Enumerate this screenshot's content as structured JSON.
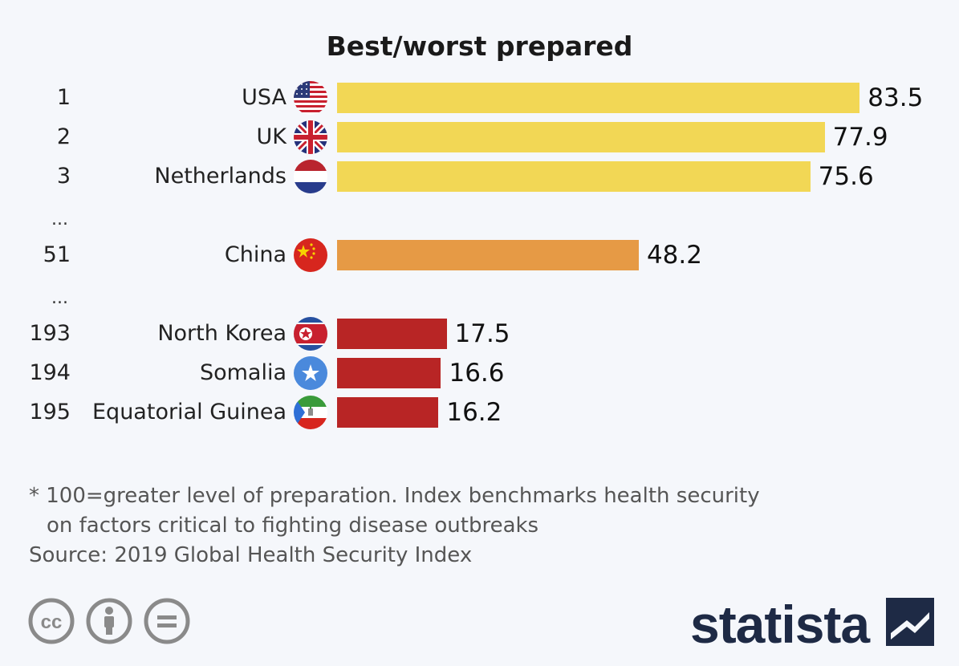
{
  "chart_data": {
    "type": "bar",
    "orientation": "horizontal",
    "title": "Best/worst prepared",
    "ellipsis": "...",
    "rows": [
      {
        "rank": "1",
        "country": "USA",
        "flag": "usa-flag",
        "value": 83.5,
        "label": "83.5",
        "color": "#f2d755"
      },
      {
        "rank": "2",
        "country": "UK",
        "flag": "uk-flag",
        "value": 77.9,
        "label": "77.9",
        "color": "#f2d755"
      },
      {
        "rank": "3",
        "country": "Netherlands",
        "flag": "netherlands-flag",
        "value": 75.6,
        "label": "75.6",
        "color": "#f2d755"
      },
      {
        "rank": "51",
        "country": "China",
        "flag": "china-flag",
        "value": 48.2,
        "label": "48.2",
        "color": "#e69a45"
      },
      {
        "rank": "193",
        "country": "North Korea",
        "flag": "north-korea-flag",
        "value": 17.5,
        "label": "17.5",
        "color": "#b82525"
      },
      {
        "rank": "194",
        "country": "Somalia",
        "flag": "somalia-flag",
        "value": 16.6,
        "label": "16.6",
        "color": "#b82525"
      },
      {
        "rank": "195",
        "country": "Equatorial Guinea",
        "flag": "equatorial-guinea-flag",
        "value": 16.2,
        "label": "16.2",
        "color": "#b82525"
      }
    ],
    "xlim": [
      0,
      100
    ],
    "grid": false
  },
  "footnote": {
    "line1": "* 100=greater level of preparation. Index benchmarks health security",
    "line2": "on factors critical to fighting disease outbreaks",
    "source": "Source: 2019 Global Health Security Index"
  },
  "license_icons": [
    "creative-commons-icon",
    "attribution-icon",
    "no-derivatives-icon"
  ],
  "logo": {
    "text": "statista",
    "color": "#1e2a45"
  }
}
